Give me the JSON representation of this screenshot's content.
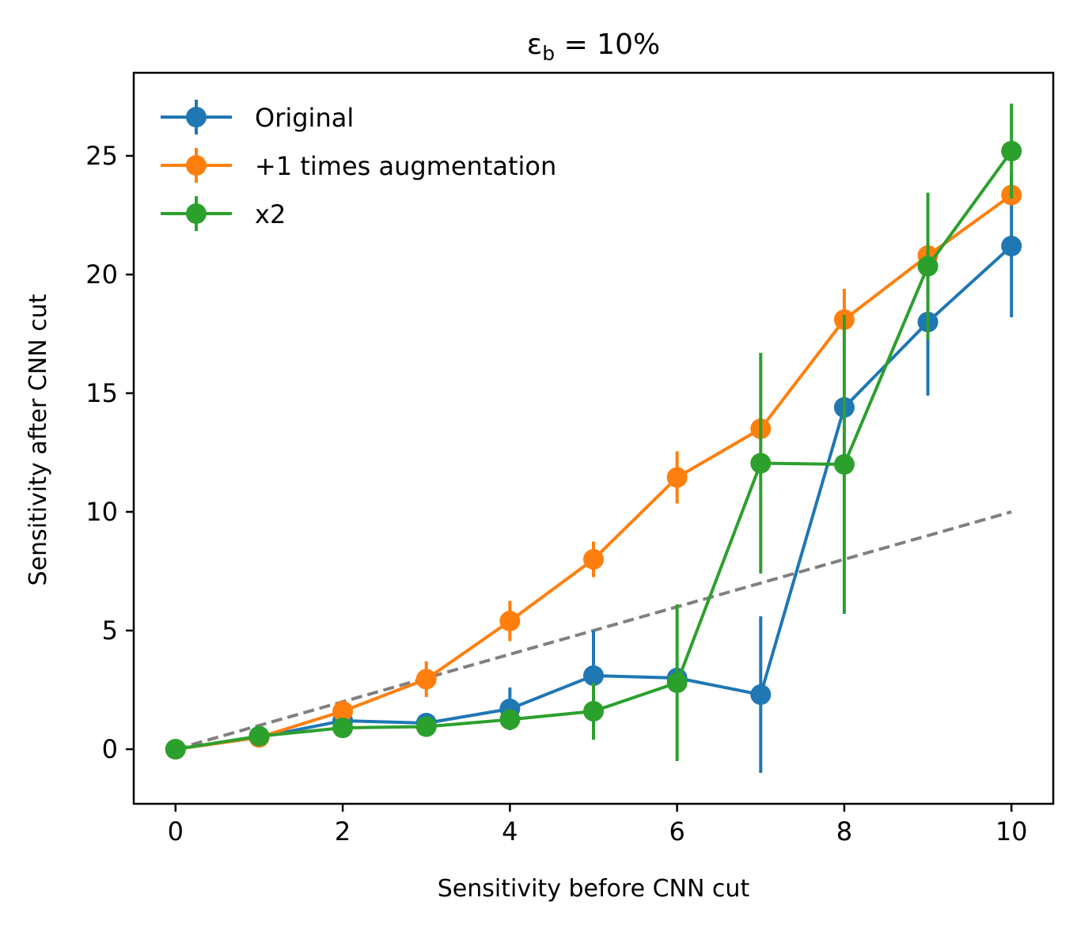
{
  "chart_data": {
    "type": "line",
    "title_main": "ε",
    "title_sub": "b",
    "title_rest": " = 10%",
    "xlabel": "Sensitivity before CNN cut",
    "ylabel": "Sensitivity after CNN cut",
    "xlim": [
      -0.5,
      10.5
    ],
    "ylim": [
      -2.3,
      28.5
    ],
    "xticks": [
      0,
      2,
      4,
      6,
      8,
      10
    ],
    "yticks": [
      0,
      5,
      10,
      15,
      20,
      25
    ],
    "grid": false,
    "legend_position": "top-left",
    "x": [
      0,
      1,
      2,
      3,
      4,
      5,
      6,
      7,
      8,
      9,
      10
    ],
    "reference_line": {
      "style": "dashed",
      "color": "#808080",
      "x": [
        0,
        10
      ],
      "y": [
        0,
        10
      ]
    },
    "series": [
      {
        "name": "Original",
        "color": "#1f77b4",
        "values": [
          0,
          0.5,
          1.2,
          1.1,
          1.7,
          3.1,
          3.0,
          2.3,
          14.4,
          18.0,
          21.2
        ],
        "err": [
          0.2,
          0.2,
          0.2,
          0.3,
          0.9,
          1.9,
          0,
          3.3,
          0,
          3.1,
          3.0
        ]
      },
      {
        "name": "+1 times augmentation",
        "color": "#ff7f0e",
        "values": [
          0,
          0.5,
          1.6,
          2.95,
          5.4,
          8.0,
          11.45,
          13.5,
          18.1,
          20.8,
          23.35
        ],
        "err": [
          0.2,
          0.3,
          0.3,
          0.75,
          0.85,
          0.75,
          1.1,
          0,
          1.3,
          0,
          0
        ]
      },
      {
        "name": "x2",
        "color": "#2ca02c",
        "values": [
          0,
          0.55,
          0.9,
          0.95,
          1.25,
          1.6,
          2.8,
          12.05,
          12.0,
          20.35,
          25.2
        ],
        "err": [
          0.2,
          0.2,
          0.2,
          0.3,
          0.35,
          1.2,
          3.3,
          4.65,
          6.3,
          3.1,
          2.0
        ]
      }
    ]
  }
}
